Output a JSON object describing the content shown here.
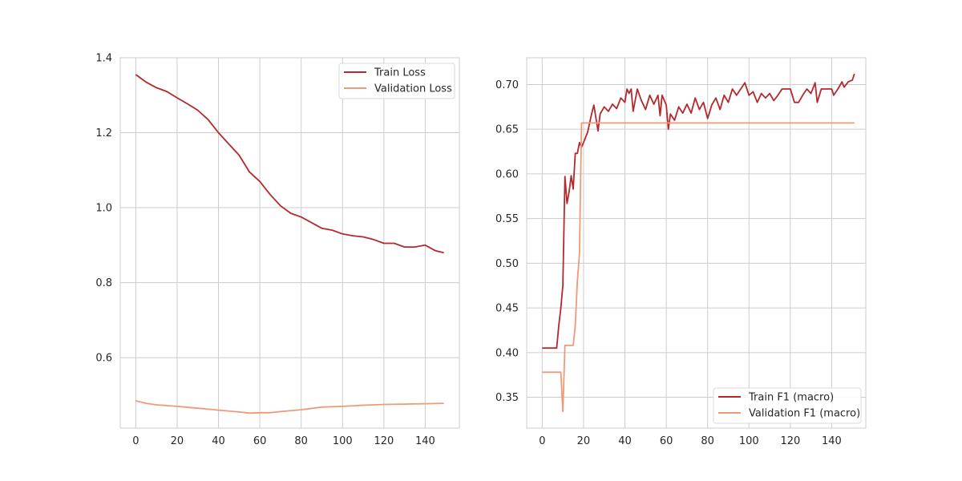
{
  "chart_data": [
    {
      "type": "line",
      "title": "",
      "xlabel": "",
      "ylabel": "",
      "xlim": [
        -7.5,
        156.5
      ],
      "ylim": [
        0.412,
        1.4
      ],
      "xticks": [
        0,
        20,
        40,
        60,
        80,
        100,
        120,
        140
      ],
      "yticks": [
        0.6,
        0.8,
        1.0,
        1.2,
        1.4
      ],
      "ytick_decimals": 1,
      "grid": true,
      "legend_position": "top-right",
      "series": [
        {
          "name": "Train Loss",
          "color": "#b5282c",
          "points": [
            [
              0,
              1.355
            ],
            [
              5,
              1.335
            ],
            [
              10,
              1.32
            ],
            [
              15,
              1.31
            ],
            [
              20,
              1.293
            ],
            [
              25,
              1.277
            ],
            [
              30,
              1.26
            ],
            [
              35,
              1.235
            ],
            [
              40,
              1.2
            ],
            [
              45,
              1.17
            ],
            [
              50,
              1.14
            ],
            [
              55,
              1.095
            ],
            [
              60,
              1.07
            ],
            [
              65,
              1.035
            ],
            [
              70,
              1.005
            ],
            [
              75,
              0.985
            ],
            [
              80,
              0.975
            ],
            [
              85,
              0.96
            ],
            [
              90,
              0.945
            ],
            [
              95,
              0.94
            ],
            [
              100,
              0.93
            ],
            [
              105,
              0.925
            ],
            [
              110,
              0.922
            ],
            [
              115,
              0.915
            ],
            [
              120,
              0.905
            ],
            [
              125,
              0.905
            ],
            [
              130,
              0.895
            ],
            [
              135,
              0.895
            ],
            [
              140,
              0.9
            ],
            [
              145,
              0.885
            ],
            [
              149,
              0.88
            ]
          ]
        },
        {
          "name": "Validation Loss",
          "color": "#ee9a78",
          "points": [
            [
              0,
              0.485
            ],
            [
              5,
              0.478
            ],
            [
              10,
              0.474
            ],
            [
              20,
              0.47
            ],
            [
              30,
              0.465
            ],
            [
              40,
              0.46
            ],
            [
              50,
              0.455
            ],
            [
              55,
              0.452
            ],
            [
              60,
              0.453
            ],
            [
              65,
              0.453
            ],
            [
              70,
              0.456
            ],
            [
              80,
              0.461
            ],
            [
              90,
              0.468
            ],
            [
              100,
              0.47
            ],
            [
              110,
              0.473
            ],
            [
              120,
              0.475
            ],
            [
              130,
              0.476
            ],
            [
              140,
              0.477
            ],
            [
              149,
              0.478
            ]
          ]
        }
      ]
    },
    {
      "type": "line",
      "title": "",
      "xlabel": "",
      "ylabel": "",
      "xlim": [
        -7.5,
        156.5
      ],
      "ylim": [
        0.3155,
        0.73
      ],
      "xticks": [
        0,
        20,
        40,
        60,
        80,
        100,
        120,
        140
      ],
      "yticks": [
        0.35,
        0.4,
        0.45,
        0.5,
        0.55,
        0.6,
        0.65,
        0.7
      ],
      "ytick_decimals": 2,
      "grid": true,
      "legend_position": "bottom-right",
      "series": [
        {
          "name": "Train F1 (macro)",
          "color": "#b5282c",
          "points": [
            [
              0,
              0.405
            ],
            [
              7,
              0.405
            ],
            [
              8,
              0.43
            ],
            [
              9,
              0.45
            ],
            [
              10,
              0.475
            ],
            [
              11,
              0.597
            ],
            [
              12,
              0.567
            ],
            [
              13,
              0.58
            ],
            [
              14,
              0.598
            ],
            [
              15,
              0.583
            ],
            [
              16,
              0.623
            ],
            [
              17,
              0.623
            ],
            [
              18,
              0.635
            ],
            [
              19,
              0.63
            ],
            [
              20,
              0.635
            ],
            [
              22,
              0.647
            ],
            [
              24,
              0.668
            ],
            [
              25,
              0.677
            ],
            [
              27,
              0.648
            ],
            [
              28,
              0.667
            ],
            [
              30,
              0.675
            ],
            [
              32,
              0.67
            ],
            [
              34,
              0.678
            ],
            [
              36,
              0.673
            ],
            [
              38,
              0.685
            ],
            [
              40,
              0.68
            ],
            [
              41,
              0.695
            ],
            [
              42,
              0.69
            ],
            [
              43,
              0.695
            ],
            [
              44,
              0.67
            ],
            [
              46,
              0.695
            ],
            [
              48,
              0.682
            ],
            [
              50,
              0.672
            ],
            [
              52,
              0.688
            ],
            [
              54,
              0.678
            ],
            [
              56,
              0.688
            ],
            [
              57,
              0.665
            ],
            [
              58,
              0.688
            ],
            [
              60,
              0.677
            ],
            [
              61,
              0.65
            ],
            [
              62,
              0.667
            ],
            [
              64,
              0.66
            ],
            [
              66,
              0.675
            ],
            [
              68,
              0.668
            ],
            [
              70,
              0.678
            ],
            [
              72,
              0.668
            ],
            [
              74,
              0.685
            ],
            [
              76,
              0.672
            ],
            [
              78,
              0.68
            ],
            [
              80,
              0.662
            ],
            [
              82,
              0.677
            ],
            [
              84,
              0.685
            ],
            [
              86,
              0.672
            ],
            [
              88,
              0.688
            ],
            [
              90,
              0.68
            ],
            [
              92,
              0.695
            ],
            [
              94,
              0.688
            ],
            [
              96,
              0.695
            ],
            [
              98,
              0.702
            ],
            [
              100,
              0.688
            ],
            [
              102,
              0.692
            ],
            [
              104,
              0.68
            ],
            [
              106,
              0.69
            ],
            [
              108,
              0.685
            ],
            [
              110,
              0.69
            ],
            [
              112,
              0.682
            ],
            [
              114,
              0.688
            ],
            [
              116,
              0.695
            ],
            [
              120,
              0.695
            ],
            [
              122,
              0.68
            ],
            [
              124,
              0.68
            ],
            [
              126,
              0.688
            ],
            [
              128,
              0.695
            ],
            [
              130,
              0.69
            ],
            [
              132,
              0.702
            ],
            [
              133,
              0.68
            ],
            [
              135,
              0.695
            ],
            [
              140,
              0.695
            ],
            [
              141,
              0.688
            ],
            [
              143,
              0.695
            ],
            [
              145,
              0.703
            ],
            [
              146,
              0.697
            ],
            [
              148,
              0.703
            ],
            [
              150,
              0.705
            ],
            [
              151,
              0.712
            ]
          ]
        },
        {
          "name": "Validation F1 (macro)",
          "color": "#ee9a78",
          "points": [
            [
              0,
              0.378
            ],
            [
              9,
              0.378
            ],
            [
              10,
              0.334
            ],
            [
              11,
              0.408
            ],
            [
              15,
              0.408
            ],
            [
              16,
              0.43
            ],
            [
              17,
              0.48
            ],
            [
              18,
              0.51
            ],
            [
              19,
              0.657
            ],
            [
              151,
              0.657
            ]
          ]
        }
      ]
    }
  ]
}
